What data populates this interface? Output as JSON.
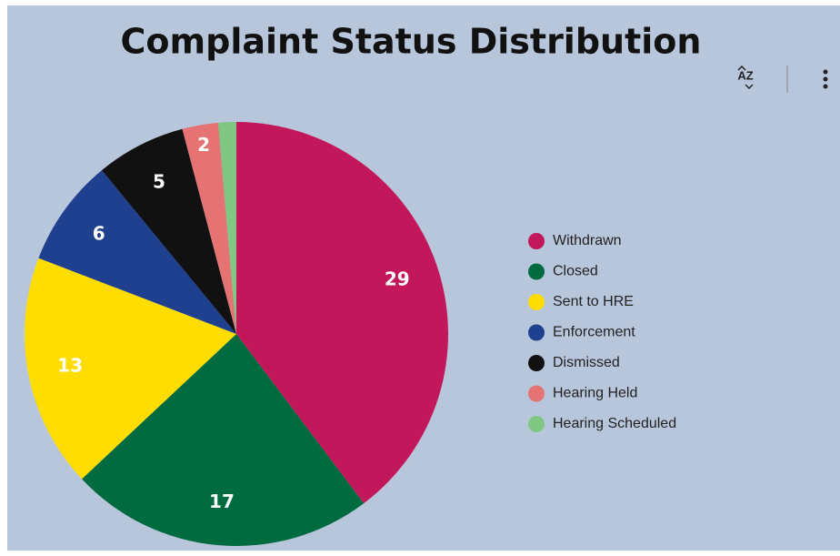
{
  "chart_data": {
    "type": "pie",
    "title": "Complaint Status Distribution",
    "categories": [
      "Withdrawn",
      "Closed",
      "Sent to HRE",
      "Enforcement",
      "Dismissed",
      "Hearing Held",
      "Hearing Scheduled"
    ],
    "values": [
      29,
      17,
      13,
      6,
      5,
      2,
      1
    ],
    "colors": [
      "#c2185b",
      "#006b3f",
      "#ffdd00",
      "#1f3f8f",
      "#111111",
      "#e57373",
      "#81c784"
    ],
    "legend": "right"
  }
}
